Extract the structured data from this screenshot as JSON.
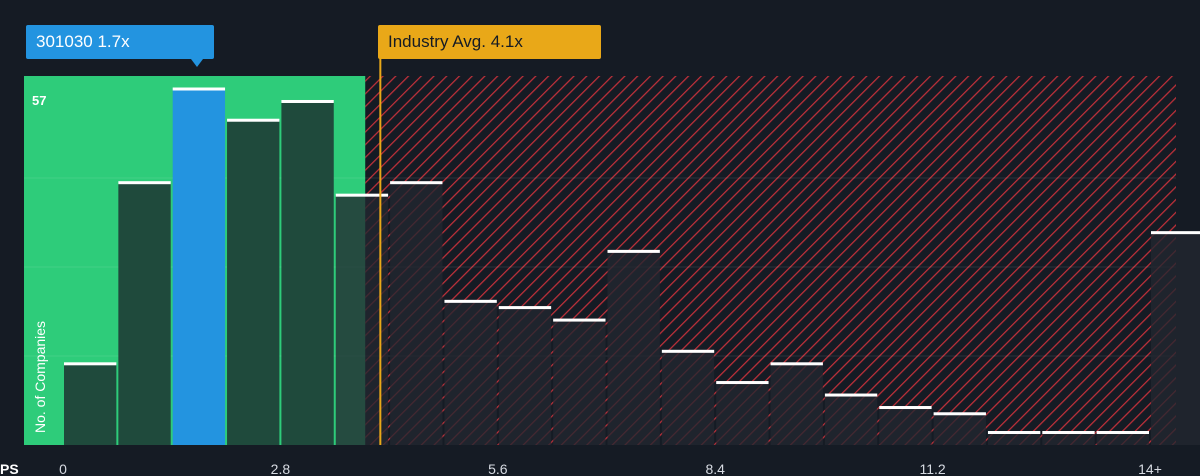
{
  "callouts": {
    "company": "301030 1.7x",
    "industry": "Industry Avg. 4.1x"
  },
  "colors": {
    "background": "#151b24",
    "fair_region": "#2ecc7a",
    "bar_fair": "#1f4a3c",
    "bar_company": "#2394e0",
    "bar_over": "#232730",
    "hatch": "#c0303a",
    "industry_line": "#e9a818",
    "cap": "#ffffff"
  },
  "chart_data": {
    "type": "bar",
    "xlabel": "PS",
    "ylabel": "No. of Companies",
    "x_tick_labels": [
      "0",
      "2.8",
      "5.6",
      "8.4",
      "11.2",
      "14+"
    ],
    "x_tick_values": [
      0,
      2.8,
      5.6,
      8.4,
      11.2,
      14
    ],
    "y_max_label": "57",
    "ylim": [
      0,
      57
    ],
    "bin_width": 0.7,
    "company_value": 1.7,
    "industry_avg": 4.1,
    "bins": [
      {
        "start": 0.0,
        "value": 13
      },
      {
        "start": 0.7,
        "value": 42
      },
      {
        "start": 1.4,
        "value": 57
      },
      {
        "start": 2.1,
        "value": 52
      },
      {
        "start": 2.8,
        "value": 55
      },
      {
        "start": 3.5,
        "value": 40
      },
      {
        "start": 4.2,
        "value": 42
      },
      {
        "start": 4.9,
        "value": 23
      },
      {
        "start": 5.6,
        "value": 22
      },
      {
        "start": 6.3,
        "value": 20
      },
      {
        "start": 7.0,
        "value": 31
      },
      {
        "start": 7.7,
        "value": 15
      },
      {
        "start": 8.4,
        "value": 10
      },
      {
        "start": 9.1,
        "value": 13
      },
      {
        "start": 9.8,
        "value": 8
      },
      {
        "start": 10.5,
        "value": 6
      },
      {
        "start": 11.2,
        "value": 5
      },
      {
        "start": 11.9,
        "value": 2
      },
      {
        "start": 12.6,
        "value": 2
      },
      {
        "start": 13.3,
        "value": 2
      },
      {
        "start": 14.0,
        "value": 34
      }
    ]
  }
}
